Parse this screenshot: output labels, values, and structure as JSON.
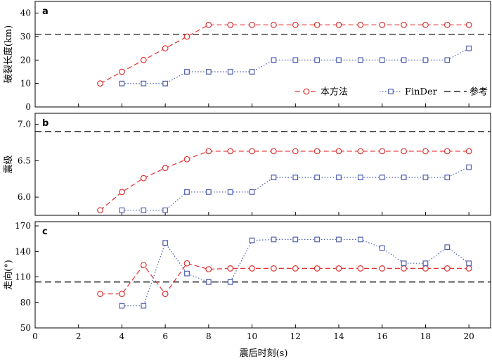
{
  "colors": {
    "method": "#e03030",
    "finder": "#5060b0",
    "reference": "#000000"
  },
  "legend": {
    "method": "本方法",
    "finder": "FinDer",
    "reference": "参考"
  },
  "chart_data": [
    {
      "type": "line",
      "panel": "a",
      "ylabel": "破裂长度(km)",
      "xlim": [
        0,
        21
      ],
      "ylim": [
        0,
        45
      ],
      "xticks": [
        0,
        2,
        4,
        6,
        8,
        10,
        12,
        14,
        16,
        18,
        20
      ],
      "yticks": [
        0,
        10,
        20,
        30,
        40
      ],
      "legend_position": "bottom-right",
      "series": [
        {
          "name": "本方法",
          "x": [
            3,
            4,
            5,
            6,
            7,
            8,
            9,
            10,
            11,
            12,
            13,
            14,
            15,
            16,
            17,
            18,
            19,
            20
          ],
          "values": [
            10,
            15,
            20,
            25,
            30,
            35,
            35,
            35,
            35,
            35,
            35,
            35,
            35,
            35,
            35,
            35,
            35,
            35
          ]
        },
        {
          "name": "FinDer",
          "x": [
            4,
            5,
            6,
            7,
            8,
            9,
            10,
            11,
            12,
            13,
            14,
            15,
            16,
            17,
            18,
            19,
            20
          ],
          "values": [
            10,
            10,
            10,
            15,
            15,
            15,
            15,
            20,
            20,
            20,
            20,
            20,
            20,
            20,
            20,
            20,
            25
          ]
        }
      ],
      "reference": 31
    },
    {
      "type": "line",
      "panel": "b",
      "ylabel": "震级",
      "xlim": [
        0,
        21
      ],
      "ylim": [
        5.75,
        7.15
      ],
      "xticks": [
        0,
        2,
        4,
        6,
        8,
        10,
        12,
        14,
        16,
        18,
        20
      ],
      "yticks": [
        6.0,
        6.5,
        7.0
      ],
      "ytick_labels": [
        "6.0",
        "6.5",
        "7.0"
      ],
      "series": [
        {
          "name": "本方法",
          "x": [
            3,
            4,
            5,
            6,
            7,
            8,
            9,
            10,
            11,
            12,
            13,
            14,
            15,
            16,
            17,
            18,
            19,
            20
          ],
          "values": [
            5.82,
            6.07,
            6.26,
            6.4,
            6.52,
            6.63,
            6.63,
            6.63,
            6.63,
            6.63,
            6.63,
            6.63,
            6.63,
            6.63,
            6.63,
            6.63,
            6.63,
            6.63
          ]
        },
        {
          "name": "FinDer",
          "x": [
            4,
            5,
            6,
            7,
            8,
            9,
            10,
            11,
            12,
            13,
            14,
            15,
            16,
            17,
            18,
            19,
            20
          ],
          "values": [
            5.82,
            5.82,
            5.82,
            6.07,
            6.07,
            6.07,
            6.07,
            6.27,
            6.27,
            6.27,
            6.27,
            6.27,
            6.27,
            6.27,
            6.27,
            6.27,
            6.41
          ]
        }
      ],
      "reference": 6.9
    },
    {
      "type": "line",
      "panel": "c",
      "ylabel": "走向(°)",
      "xlabel": "震后时刻(s)",
      "xlim": [
        0,
        21
      ],
      "ylim": [
        50,
        175
      ],
      "xticks": [
        0,
        2,
        4,
        6,
        8,
        10,
        12,
        14,
        16,
        18,
        20
      ],
      "yticks": [
        50,
        80,
        110,
        140,
        170
      ],
      "series": [
        {
          "name": "本方法",
          "x": [
            3,
            4,
            5,
            6,
            7,
            8,
            9,
            10,
            11,
            12,
            13,
            14,
            15,
            16,
            17,
            18,
            19,
            20
          ],
          "values": [
            90,
            90,
            124,
            90,
            126,
            119,
            120,
            120,
            120,
            120,
            120,
            120,
            120,
            120,
            120,
            120,
            120,
            120
          ]
        },
        {
          "name": "FinDer",
          "x": [
            4,
            5,
            6,
            7,
            8,
            9,
            10,
            11,
            12,
            13,
            14,
            15,
            16,
            17,
            18,
            19,
            20
          ],
          "values": [
            76,
            76,
            150,
            114,
            104,
            104,
            153,
            154,
            154,
            154,
            154,
            154,
            144,
            126,
            126,
            145,
            126
          ]
        }
      ],
      "reference": 104
    }
  ]
}
